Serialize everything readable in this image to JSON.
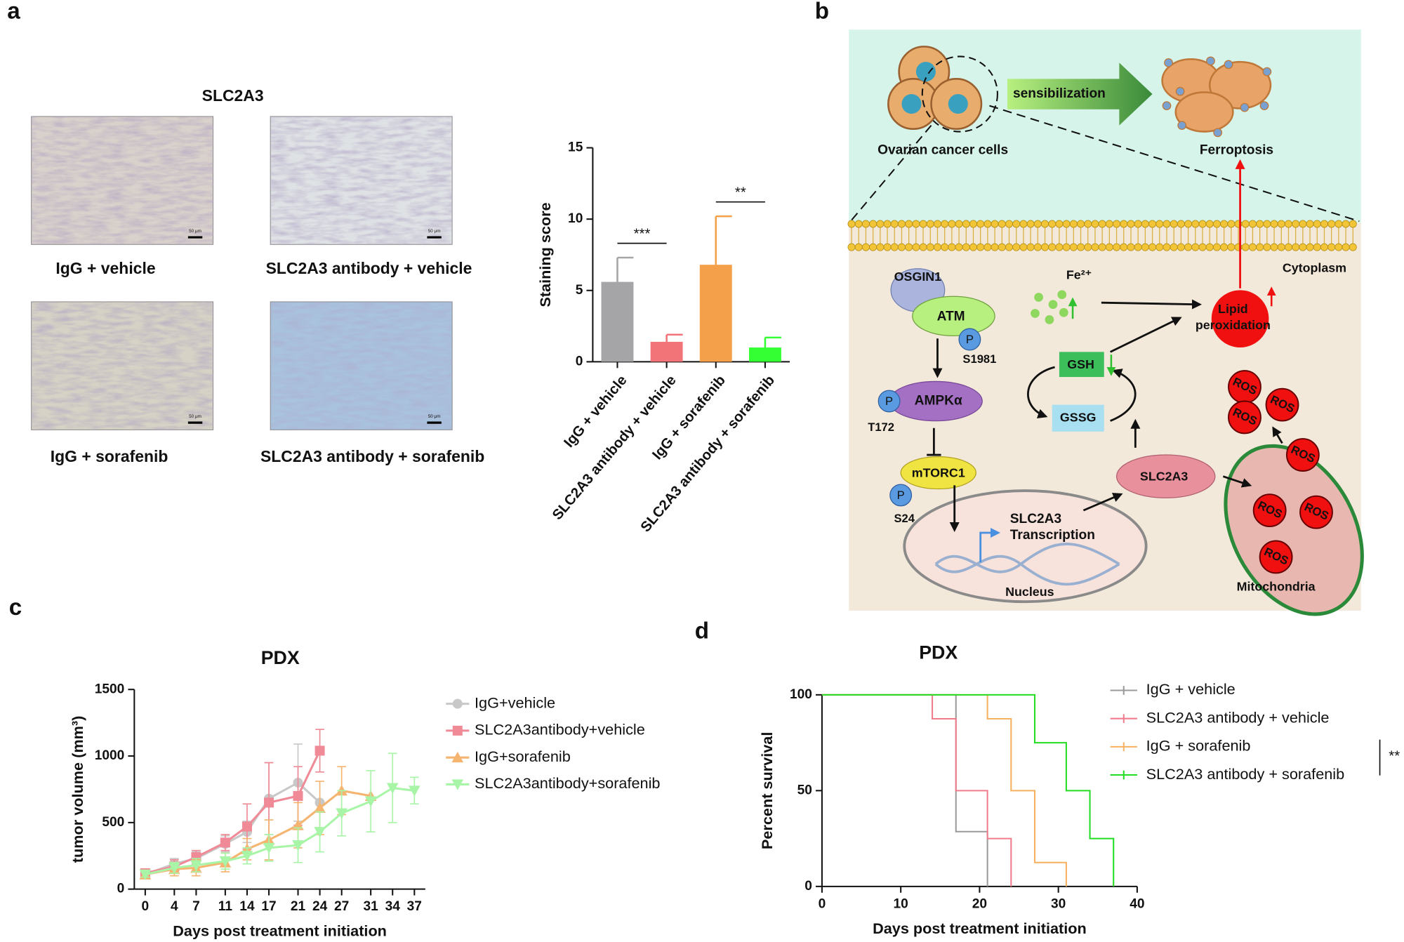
{
  "panel_labels": [
    "a",
    "b",
    "c",
    "d"
  ],
  "micrographs": {
    "title": "SLC2A3",
    "captions": [
      "IgG + vehicle",
      "SLC2A3 antibody + vehicle",
      "IgG + sorafenib",
      "SLC2A3 antibody + sorafenib"
    ],
    "scale_bar": "50 μm",
    "colors": [
      "#d9d1cb",
      "#dfe2e5",
      "#d6d2c5",
      "#a9c2de"
    ]
  },
  "chart_data": [
    {
      "type": "bar",
      "ylabel": "Staining score",
      "categories": [
        "IgG + vehicle",
        "SLC2A3 antibody + vehicle",
        "IgG + sorafenib",
        "SLC2A3 antibody + sorafenib"
      ],
      "values": [
        5.6,
        1.4,
        6.8,
        1.0
      ],
      "errors": [
        1.7,
        0.5,
        3.4,
        0.7
      ],
      "colors": [
        "#a5a5a8",
        "#f27479",
        "#f4a04a",
        "#33ff33"
      ],
      "ylim": [
        0,
        15
      ],
      "yticks": [
        0,
        5,
        10,
        15
      ],
      "significance": [
        "***",
        "**"
      ]
    },
    {
      "type": "line",
      "title": "PDX",
      "xlabel": "Days post treatment initiation",
      "ylabel": "tumor volume (mm³)",
      "xlim": [
        -1.5,
        38.5
      ],
      "xticks": [
        0,
        4,
        7,
        11,
        14,
        17,
        21,
        24,
        27,
        31,
        34,
        37
      ],
      "ylim": [
        0,
        1500
      ],
      "yticks": [
        0,
        500,
        1000,
        1500
      ],
      "series": [
        {
          "name": "IgG+vehicle",
          "color": "#c8c8c8",
          "marker": "circle",
          "x": [
            0,
            4,
            7,
            11,
            14,
            17,
            21,
            24
          ],
          "values": [
            110,
            190,
            230,
            340,
            430,
            680,
            800,
            650
          ],
          "errors": [
            20,
            40,
            50,
            60,
            80,
            270,
            290,
            0
          ]
        },
        {
          "name": "SLC2A3antibody+vehicle",
          "color": "#f08a97",
          "marker": "square",
          "x": [
            0,
            4,
            7,
            11,
            14,
            17,
            21,
            24
          ],
          "values": [
            120,
            170,
            240,
            350,
            470,
            650,
            700,
            1040
          ],
          "errors": [
            20,
            50,
            50,
            60,
            170,
            300,
            220,
            160
          ]
        },
        {
          "name": "IgG+sorafenib",
          "color": "#f5b46f",
          "marker": "triangle",
          "x": [
            0,
            4,
            7,
            11,
            14,
            17,
            21,
            24,
            27,
            31
          ],
          "values": [
            110,
            150,
            160,
            200,
            300,
            370,
            480,
            610,
            740,
            700
          ],
          "errors": [
            20,
            50,
            60,
            70,
            80,
            150,
            170,
            200,
            180,
            0
          ]
        },
        {
          "name": "SLC2A3antibody+sorafenib",
          "color": "#a8f5a8",
          "marker": "triangle-down",
          "x": [
            0,
            4,
            7,
            11,
            14,
            17,
            21,
            24,
            27,
            31,
            34,
            37
          ],
          "values": [
            110,
            160,
            180,
            210,
            250,
            310,
            330,
            430,
            570,
            660,
            760,
            740
          ],
          "errors": [
            20,
            40,
            50,
            60,
            60,
            100,
            130,
            150,
            170,
            230,
            260,
            100
          ]
        }
      ]
    },
    {
      "type": "step",
      "title": "PDX",
      "xlabel": "Days post treatment initiation",
      "ylabel": "Percent survival",
      "xlim": [
        0,
        40
      ],
      "xticks": [
        0,
        10,
        20,
        30,
        40
      ],
      "ylim": [
        0,
        100
      ],
      "yticks": [
        0,
        50,
        100
      ],
      "significance": "**",
      "series": [
        {
          "name": "IgG + vehicle",
          "color": "#9a9a9a",
          "x": [
            0,
            17,
            21
          ],
          "values": [
            100,
            28.6,
            0
          ]
        },
        {
          "name": "SLC2A3 antibody + vehicle",
          "color": "#f07c8c",
          "x": [
            0,
            14,
            17,
            21,
            24
          ],
          "values": [
            100,
            87.5,
            50,
            25,
            0
          ]
        },
        {
          "name": "IgG + sorafenib",
          "color": "#f5b060",
          "x": [
            0,
            21,
            24,
            27,
            31
          ],
          "values": [
            100,
            87.5,
            50,
            12.5,
            0
          ]
        },
        {
          "name": "SLC2A3 antibody + sorafenib",
          "color": "#22dd22",
          "x": [
            0,
            27,
            31,
            34,
            37
          ],
          "values": [
            100,
            75,
            50,
            25,
            0
          ]
        }
      ]
    }
  ],
  "diagram": {
    "cells": "Ovarian cancer cells",
    "arrow": "sensibilization",
    "death": "Ferroptosis",
    "cytoplasm": "Cytoplasm",
    "proteins": {
      "osgin1": "OSGIN1",
      "atm": "ATM",
      "ampk": "AMPKα",
      "mtorc1": "mTORC1",
      "slc2a3": "SLC2A3",
      "gsh": "GSH",
      "gssg": "GSSG"
    },
    "phospho": "P",
    "sites": {
      "atm": "S1981",
      "ampk": "T172",
      "mtorc1": "S24"
    },
    "iron": "Fe²⁺",
    "lipid": [
      "Lipid",
      "peroxidation"
    ],
    "transcription": [
      "SLC2A3",
      "Transcription"
    ],
    "nucleus": "Nucleus",
    "mitochondria": "Mitochondria",
    "ros": "ROS"
  }
}
